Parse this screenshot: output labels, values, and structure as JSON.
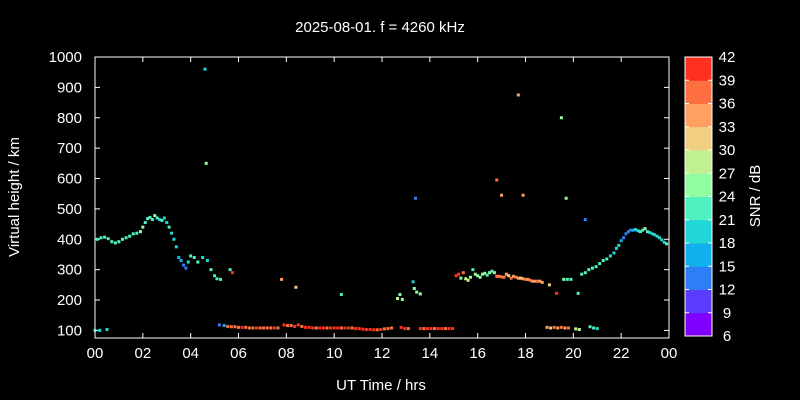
{
  "chart_data": {
    "type": "scatter",
    "title": "2025-08-01. f = 4260 kHz",
    "xlabel": "UT Time / hrs",
    "ylabel": "Virtual height / km",
    "xlim": [
      0,
      24
    ],
    "ylim": [
      75,
      1000
    ],
    "x_ticks": [
      "00",
      "02",
      "04",
      "06",
      "08",
      "10",
      "12",
      "14",
      "16",
      "18",
      "20",
      "22",
      "00"
    ],
    "y_ticks": [
      100,
      200,
      300,
      400,
      500,
      600,
      700,
      800,
      900,
      1000
    ],
    "colorbar": {
      "label": "SNR / dB",
      "range": [
        6,
        42
      ],
      "ticks": [
        6,
        9,
        12,
        15,
        18,
        21,
        24,
        27,
        30,
        33,
        36,
        39,
        42
      ]
    },
    "colors": {
      "background": "#000000",
      "axes": "#ffffff",
      "palette": [
        "#8000ff",
        "#5a3cff",
        "#2e7ef6",
        "#10b0ee",
        "#20d6d6",
        "#50f0c0",
        "#8efea0",
        "#c0f090",
        "#f0d080",
        "#ffa060",
        "#ff7040",
        "#ff3020"
      ]
    },
    "points": [
      {
        "x": 0.0,
        "y": 100,
        "snr": 18
      },
      {
        "x": 0.2,
        "y": 100,
        "snr": 18
      },
      {
        "x": 0.5,
        "y": 103,
        "snr": 18
      },
      {
        "x": 0.1,
        "y": 400,
        "snr": 21
      },
      {
        "x": 0.25,
        "y": 405,
        "snr": 21
      },
      {
        "x": 0.4,
        "y": 407,
        "snr": 22
      },
      {
        "x": 0.55,
        "y": 402,
        "snr": 22
      },
      {
        "x": 0.7,
        "y": 392,
        "snr": 22
      },
      {
        "x": 0.85,
        "y": 388,
        "snr": 23
      },
      {
        "x": 1.0,
        "y": 392,
        "snr": 23
      },
      {
        "x": 1.15,
        "y": 400,
        "snr": 22
      },
      {
        "x": 1.3,
        "y": 405,
        "snr": 22
      },
      {
        "x": 1.45,
        "y": 410,
        "snr": 22
      },
      {
        "x": 1.6,
        "y": 418,
        "snr": 23
      },
      {
        "x": 1.75,
        "y": 420,
        "snr": 23
      },
      {
        "x": 1.9,
        "y": 425,
        "snr": 24
      },
      {
        "x": 2.0,
        "y": 440,
        "snr": 24
      },
      {
        "x": 2.1,
        "y": 455,
        "snr": 23
      },
      {
        "x": 2.2,
        "y": 468,
        "snr": 22
      },
      {
        "x": 2.3,
        "y": 472,
        "snr": 22
      },
      {
        "x": 2.4,
        "y": 465,
        "snr": 21
      },
      {
        "x": 2.5,
        "y": 478,
        "snr": 24
      },
      {
        "x": 2.6,
        "y": 470,
        "snr": 22
      },
      {
        "x": 2.7,
        "y": 465,
        "snr": 20
      },
      {
        "x": 2.8,
        "y": 462,
        "snr": 21
      },
      {
        "x": 2.9,
        "y": 470,
        "snr": 20
      },
      {
        "x": 3.0,
        "y": 455,
        "snr": 20
      },
      {
        "x": 3.1,
        "y": 440,
        "snr": 21
      },
      {
        "x": 3.2,
        "y": 420,
        "snr": 20
      },
      {
        "x": 3.3,
        "y": 400,
        "snr": 19
      },
      {
        "x": 3.4,
        "y": 375,
        "snr": 19
      },
      {
        "x": 3.5,
        "y": 340,
        "snr": 16
      },
      {
        "x": 3.6,
        "y": 330,
        "snr": 15
      },
      {
        "x": 3.7,
        "y": 315,
        "snr": 14
      },
      {
        "x": 3.8,
        "y": 305,
        "snr": 13
      },
      {
        "x": 3.9,
        "y": 325,
        "snr": 18
      },
      {
        "x": 4.0,
        "y": 345,
        "snr": 22
      },
      {
        "x": 4.15,
        "y": 340,
        "snr": 22
      },
      {
        "x": 4.3,
        "y": 325,
        "snr": 21
      },
      {
        "x": 4.5,
        "y": 340,
        "snr": 20
      },
      {
        "x": 4.7,
        "y": 330,
        "snr": 19
      },
      {
        "x": 4.85,
        "y": 300,
        "snr": 21
      },
      {
        "x": 5.0,
        "y": 280,
        "snr": 21
      },
      {
        "x": 5.1,
        "y": 270,
        "snr": 21
      },
      {
        "x": 5.25,
        "y": 268,
        "snr": 21
      },
      {
        "x": 4.6,
        "y": 960,
        "snr": 18
      },
      {
        "x": 4.65,
        "y": 650,
        "snr": 26
      },
      {
        "x": 5.65,
        "y": 300,
        "snr": 23
      },
      {
        "x": 5.75,
        "y": 290,
        "snr": 39
      },
      {
        "x": 5.2,
        "y": 118,
        "snr": 13
      },
      {
        "x": 5.4,
        "y": 116,
        "snr": 16
      },
      {
        "x": 5.55,
        "y": 113,
        "snr": 38
      },
      {
        "x": 5.7,
        "y": 112,
        "snr": 36
      },
      {
        "x": 5.85,
        "y": 112,
        "snr": 38
      },
      {
        "x": 6.0,
        "y": 110,
        "snr": 38
      },
      {
        "x": 6.15,
        "y": 110,
        "snr": 39
      },
      {
        "x": 6.3,
        "y": 110,
        "snr": 38
      },
      {
        "x": 6.45,
        "y": 108,
        "snr": 37
      },
      {
        "x": 6.6,
        "y": 108,
        "snr": 38
      },
      {
        "x": 6.75,
        "y": 108,
        "snr": 39
      },
      {
        "x": 6.9,
        "y": 108,
        "snr": 38
      },
      {
        "x": 7.05,
        "y": 108,
        "snr": 37
      },
      {
        "x": 7.2,
        "y": 108,
        "snr": 38
      },
      {
        "x": 7.35,
        "y": 108,
        "snr": 38
      },
      {
        "x": 7.5,
        "y": 108,
        "snr": 39
      },
      {
        "x": 7.65,
        "y": 108,
        "snr": 38
      },
      {
        "x": 7.8,
        "y": 268,
        "snr": 33
      },
      {
        "x": 7.9,
        "y": 118,
        "snr": 39
      },
      {
        "x": 8.05,
        "y": 116,
        "snr": 38
      },
      {
        "x": 8.2,
        "y": 116,
        "snr": 38
      },
      {
        "x": 8.35,
        "y": 113,
        "snr": 39
      },
      {
        "x": 8.5,
        "y": 118,
        "snr": 40
      },
      {
        "x": 8.65,
        "y": 113,
        "snr": 38
      },
      {
        "x": 8.8,
        "y": 110,
        "snr": 39
      },
      {
        "x": 8.95,
        "y": 110,
        "snr": 40
      },
      {
        "x": 9.1,
        "y": 108,
        "snr": 39
      },
      {
        "x": 9.25,
        "y": 108,
        "snr": 38
      },
      {
        "x": 9.4,
        "y": 108,
        "snr": 39
      },
      {
        "x": 9.55,
        "y": 108,
        "snr": 40
      },
      {
        "x": 9.7,
        "y": 108,
        "snr": 38
      },
      {
        "x": 9.85,
        "y": 108,
        "snr": 39
      },
      {
        "x": 10.0,
        "y": 108,
        "snr": 39
      },
      {
        "x": 10.15,
        "y": 108,
        "snr": 40
      },
      {
        "x": 10.3,
        "y": 108,
        "snr": 38
      },
      {
        "x": 10.45,
        "y": 108,
        "snr": 39
      },
      {
        "x": 10.6,
        "y": 108,
        "snr": 39
      },
      {
        "x": 10.75,
        "y": 108,
        "snr": 38
      },
      {
        "x": 8.4,
        "y": 242,
        "snr": 30
      },
      {
        "x": 10.3,
        "y": 218,
        "snr": 22
      },
      {
        "x": 10.9,
        "y": 106,
        "snr": 39
      },
      {
        "x": 11.05,
        "y": 106,
        "snr": 40
      },
      {
        "x": 11.2,
        "y": 104,
        "snr": 39
      },
      {
        "x": 11.35,
        "y": 103,
        "snr": 40
      },
      {
        "x": 11.5,
        "y": 103,
        "snr": 39
      },
      {
        "x": 11.65,
        "y": 102,
        "snr": 40
      },
      {
        "x": 11.8,
        "y": 102,
        "snr": 38
      },
      {
        "x": 11.95,
        "y": 103,
        "snr": 39
      },
      {
        "x": 12.1,
        "y": 105,
        "snr": 38
      },
      {
        "x": 12.25,
        "y": 106,
        "snr": 37
      },
      {
        "x": 12.4,
        "y": 108,
        "snr": 38
      },
      {
        "x": 12.65,
        "y": 205,
        "snr": 27
      },
      {
        "x": 12.75,
        "y": 218,
        "snr": 25
      },
      {
        "x": 12.85,
        "y": 202,
        "snr": 26
      },
      {
        "x": 12.8,
        "y": 110,
        "snr": 39
      },
      {
        "x": 12.95,
        "y": 106,
        "snr": 40
      },
      {
        "x": 13.1,
        "y": 106,
        "snr": 38
      },
      {
        "x": 13.3,
        "y": 260,
        "snr": 18
      },
      {
        "x": 13.35,
        "y": 238,
        "snr": 24
      },
      {
        "x": 13.45,
        "y": 226,
        "snr": 24
      },
      {
        "x": 13.6,
        "y": 220,
        "snr": 24
      },
      {
        "x": 13.4,
        "y": 535,
        "snr": 14
      },
      {
        "x": 13.6,
        "y": 106,
        "snr": 39
      },
      {
        "x": 13.75,
        "y": 106,
        "snr": 38
      },
      {
        "x": 13.9,
        "y": 106,
        "snr": 39
      },
      {
        "x": 14.05,
        "y": 106,
        "snr": 40
      },
      {
        "x": 14.2,
        "y": 106,
        "snr": 38
      },
      {
        "x": 14.35,
        "y": 106,
        "snr": 39
      },
      {
        "x": 14.5,
        "y": 106,
        "snr": 39
      },
      {
        "x": 14.65,
        "y": 106,
        "snr": 38
      },
      {
        "x": 14.8,
        "y": 106,
        "snr": 39
      },
      {
        "x": 14.95,
        "y": 106,
        "snr": 40
      },
      {
        "x": 15.1,
        "y": 280,
        "snr": 40
      },
      {
        "x": 15.2,
        "y": 285,
        "snr": 39
      },
      {
        "x": 15.3,
        "y": 272,
        "snr": 26
      },
      {
        "x": 15.4,
        "y": 290,
        "snr": 38
      },
      {
        "x": 15.5,
        "y": 270,
        "snr": 27
      },
      {
        "x": 15.6,
        "y": 265,
        "snr": 28
      },
      {
        "x": 15.7,
        "y": 275,
        "snr": 25
      },
      {
        "x": 15.8,
        "y": 300,
        "snr": 23
      },
      {
        "x": 15.9,
        "y": 285,
        "snr": 24
      },
      {
        "x": 16.0,
        "y": 280,
        "snr": 25
      },
      {
        "x": 16.1,
        "y": 275,
        "snr": 25
      },
      {
        "x": 16.2,
        "y": 285,
        "snr": 24
      },
      {
        "x": 16.3,
        "y": 288,
        "snr": 24
      },
      {
        "x": 16.4,
        "y": 282,
        "snr": 23
      },
      {
        "x": 16.5,
        "y": 290,
        "snr": 24
      },
      {
        "x": 16.6,
        "y": 295,
        "snr": 23
      },
      {
        "x": 16.7,
        "y": 290,
        "snr": 24
      },
      {
        "x": 16.8,
        "y": 278,
        "snr": 36
      },
      {
        "x": 16.9,
        "y": 278,
        "snr": 37
      },
      {
        "x": 17.0,
        "y": 276,
        "snr": 36
      },
      {
        "x": 17.1,
        "y": 275,
        "snr": 36
      },
      {
        "x": 17.2,
        "y": 285,
        "snr": 35
      },
      {
        "x": 17.3,
        "y": 280,
        "snr": 30
      },
      {
        "x": 17.4,
        "y": 272,
        "snr": 36
      },
      {
        "x": 17.5,
        "y": 278,
        "snr": 35
      },
      {
        "x": 17.6,
        "y": 275,
        "snr": 36
      },
      {
        "x": 17.7,
        "y": 272,
        "snr": 35
      },
      {
        "x": 17.8,
        "y": 272,
        "snr": 30
      },
      {
        "x": 17.9,
        "y": 270,
        "snr": 33
      },
      {
        "x": 18.0,
        "y": 268,
        "snr": 36
      },
      {
        "x": 18.1,
        "y": 268,
        "snr": 35
      },
      {
        "x": 18.2,
        "y": 265,
        "snr": 36
      },
      {
        "x": 18.3,
        "y": 262,
        "snr": 34
      },
      {
        "x": 18.4,
        "y": 262,
        "snr": 35
      },
      {
        "x": 18.5,
        "y": 262,
        "snr": 36
      },
      {
        "x": 18.6,
        "y": 262,
        "snr": 35
      },
      {
        "x": 18.7,
        "y": 258,
        "snr": 34
      },
      {
        "x": 19.0,
        "y": 250,
        "snr": 30
      },
      {
        "x": 16.8,
        "y": 595,
        "snr": 38
      },
      {
        "x": 17.0,
        "y": 545,
        "snr": 35
      },
      {
        "x": 17.7,
        "y": 875,
        "snr": 33
      },
      {
        "x": 17.9,
        "y": 545,
        "snr": 33
      },
      {
        "x": 19.5,
        "y": 800,
        "snr": 24
      },
      {
        "x": 19.7,
        "y": 535,
        "snr": 25
      },
      {
        "x": 20.5,
        "y": 465,
        "snr": 12
      },
      {
        "x": 19.3,
        "y": 222,
        "snr": 40
      },
      {
        "x": 18.9,
        "y": 110,
        "snr": 33
      },
      {
        "x": 19.05,
        "y": 108,
        "snr": 31
      },
      {
        "x": 19.2,
        "y": 110,
        "snr": 36
      },
      {
        "x": 19.35,
        "y": 108,
        "snr": 34
      },
      {
        "x": 19.5,
        "y": 110,
        "snr": 36
      },
      {
        "x": 19.65,
        "y": 108,
        "snr": 35
      },
      {
        "x": 19.8,
        "y": 108,
        "snr": 36
      },
      {
        "x": 20.1,
        "y": 105,
        "snr": 27
      },
      {
        "x": 20.25,
        "y": 103,
        "snr": 28
      },
      {
        "x": 20.7,
        "y": 112,
        "snr": 22
      },
      {
        "x": 20.85,
        "y": 108,
        "snr": 21
      },
      {
        "x": 21.0,
        "y": 106,
        "snr": 19
      },
      {
        "x": 19.6,
        "y": 268,
        "snr": 24
      },
      {
        "x": 19.75,
        "y": 268,
        "snr": 23
      },
      {
        "x": 19.9,
        "y": 268,
        "snr": 21
      },
      {
        "x": 20.2,
        "y": 222,
        "snr": 21
      },
      {
        "x": 20.35,
        "y": 285,
        "snr": 22
      },
      {
        "x": 20.5,
        "y": 290,
        "snr": 22
      },
      {
        "x": 20.65,
        "y": 300,
        "snr": 22
      },
      {
        "x": 20.8,
        "y": 305,
        "snr": 22
      },
      {
        "x": 20.95,
        "y": 310,
        "snr": 21
      },
      {
        "x": 21.1,
        "y": 320,
        "snr": 21
      },
      {
        "x": 21.25,
        "y": 330,
        "snr": 21
      },
      {
        "x": 21.4,
        "y": 335,
        "snr": 21
      },
      {
        "x": 21.55,
        "y": 345,
        "snr": 20
      },
      {
        "x": 21.7,
        "y": 355,
        "snr": 20
      },
      {
        "x": 21.8,
        "y": 370,
        "snr": 19
      },
      {
        "x": 21.9,
        "y": 380,
        "snr": 18
      },
      {
        "x": 22.0,
        "y": 395,
        "snr": 16
      },
      {
        "x": 22.1,
        "y": 405,
        "snr": 14
      },
      {
        "x": 22.2,
        "y": 418,
        "snr": 14
      },
      {
        "x": 22.3,
        "y": 425,
        "snr": 13
      },
      {
        "x": 22.4,
        "y": 430,
        "snr": 14
      },
      {
        "x": 22.5,
        "y": 430,
        "snr": 16
      },
      {
        "x": 22.6,
        "y": 432,
        "snr": 18
      },
      {
        "x": 22.7,
        "y": 428,
        "snr": 20
      },
      {
        "x": 22.8,
        "y": 425,
        "snr": 21
      },
      {
        "x": 22.9,
        "y": 430,
        "snr": 22
      },
      {
        "x": 23.0,
        "y": 435,
        "snr": 24
      },
      {
        "x": 23.1,
        "y": 425,
        "snr": 21
      },
      {
        "x": 23.2,
        "y": 422,
        "snr": 20
      },
      {
        "x": 23.3,
        "y": 418,
        "snr": 20
      },
      {
        "x": 23.4,
        "y": 415,
        "snr": 19
      },
      {
        "x": 23.5,
        "y": 410,
        "snr": 20
      },
      {
        "x": 23.6,
        "y": 405,
        "snr": 19
      },
      {
        "x": 23.7,
        "y": 398,
        "snr": 20
      },
      {
        "x": 23.8,
        "y": 390,
        "snr": 20
      },
      {
        "x": 23.9,
        "y": 385,
        "snr": 21
      }
    ]
  }
}
